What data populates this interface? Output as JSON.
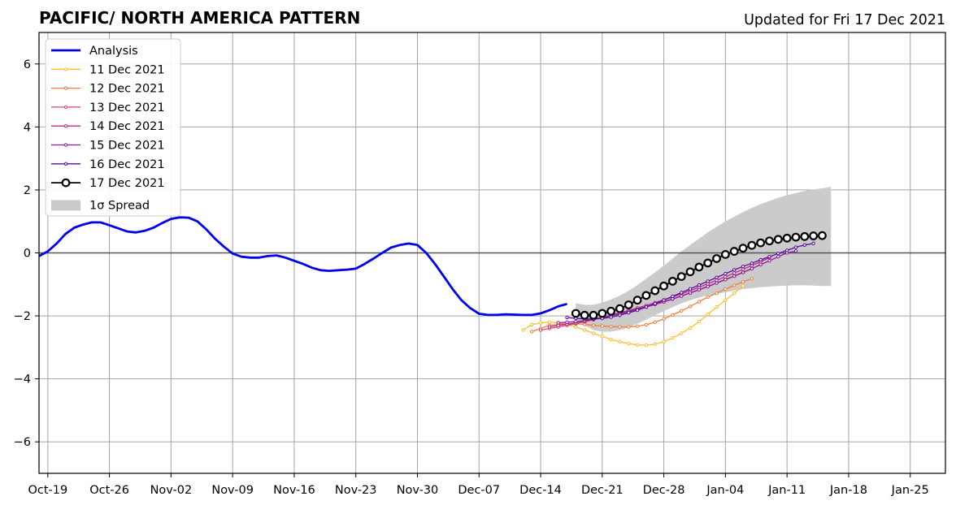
{
  "chart_data": {
    "type": "line",
    "title": "PACIFIC/ NORTH AMERICA PATTERN",
    "subtitle": "Updated for Fri 17 Dec 2021",
    "xlabel": "",
    "ylabel": "",
    "x_axis": {
      "type": "date",
      "range": [
        "2021-10-18",
        "2022-01-29"
      ],
      "ticks": [
        {
          "date": "2021-10-19",
          "label": "Oct-19"
        },
        {
          "date": "2021-10-26",
          "label": "Oct-26"
        },
        {
          "date": "2021-11-02",
          "label": "Nov-02"
        },
        {
          "date": "2021-11-09",
          "label": "Nov-09"
        },
        {
          "date": "2021-11-16",
          "label": "Nov-16"
        },
        {
          "date": "2021-11-23",
          "label": "Nov-23"
        },
        {
          "date": "2021-11-30",
          "label": "Nov-30"
        },
        {
          "date": "2021-12-07",
          "label": "Dec-07"
        },
        {
          "date": "2021-12-14",
          "label": "Dec-14"
        },
        {
          "date": "2021-12-21",
          "label": "Dec-21"
        },
        {
          "date": "2021-12-28",
          "label": "Dec-28"
        },
        {
          "date": "2022-01-04",
          "label": "Jan-04"
        },
        {
          "date": "2022-01-11",
          "label": "Jan-11"
        },
        {
          "date": "2022-01-18",
          "label": "Jan-18"
        },
        {
          "date": "2022-01-25",
          "label": "Jan-25"
        }
      ]
    },
    "y_axis": {
      "range": [
        -7,
        7
      ],
      "ticks": [
        {
          "value": -6,
          "label": "−6"
        },
        {
          "value": -4,
          "label": "−4"
        },
        {
          "value": -2,
          "label": "−2"
        },
        {
          "value": 0,
          "label": "0"
        },
        {
          "value": 2,
          "label": "2"
        },
        {
          "value": 4,
          "label": "4"
        },
        {
          "value": 6,
          "label": "6"
        }
      ]
    },
    "grid": true,
    "zero_line": true,
    "legend_position": "upper-left",
    "analysis": {
      "name": "Analysis",
      "color": "#0000ee",
      "start_date": "2021-10-18",
      "values": [
        -0.1,
        0.05,
        0.3,
        0.6,
        0.8,
        0.9,
        0.97,
        0.97,
        0.88,
        0.78,
        0.68,
        0.65,
        0.7,
        0.8,
        0.95,
        1.08,
        1.13,
        1.12,
        1.0,
        0.75,
        0.45,
        0.2,
        -0.02,
        -0.12,
        -0.15,
        -0.15,
        -0.1,
        -0.08,
        -0.15,
        -0.25,
        -0.35,
        -0.47,
        -0.55,
        -0.57,
        -0.55,
        -0.53,
        -0.5,
        -0.35,
        -0.18,
        0.0,
        0.17,
        0.25,
        0.3,
        0.25,
        0.0,
        -0.35,
        -0.75,
        -1.15,
        -1.5,
        -1.75,
        -1.93,
        -1.97,
        -1.97,
        -1.95,
        -1.96,
        -1.97,
        -1.97,
        -1.92,
        -1.82,
        -1.7,
        -1.62
      ]
    },
    "forecasts": [
      {
        "name": "11 Dec 2021",
        "color": "#fcbf30",
        "start_date": "2021-12-12",
        "values": [
          -2.45,
          -2.28,
          -2.22,
          -2.2,
          -2.22,
          -2.27,
          -2.35,
          -2.45,
          -2.55,
          -2.65,
          -2.75,
          -2.82,
          -2.88,
          -2.92,
          -2.93,
          -2.9,
          -2.82,
          -2.7,
          -2.55,
          -2.38,
          -2.18,
          -1.95,
          -1.72,
          -1.5,
          -1.28,
          -1.05
        ]
      },
      {
        "name": "12 Dec 2021",
        "color": "#f37d3c",
        "start_date": "2021-12-13",
        "values": [
          -2.5,
          -2.4,
          -2.3,
          -2.27,
          -2.25,
          -2.25,
          -2.27,
          -2.3,
          -2.32,
          -2.34,
          -2.35,
          -2.35,
          -2.33,
          -2.28,
          -2.2,
          -2.1,
          -1.97,
          -1.84,
          -1.7,
          -1.55,
          -1.4,
          -1.28,
          -1.15,
          -1.03,
          -0.92,
          -0.82
        ]
      },
      {
        "name": "13 Dec 2021",
        "color": "#db4a64",
        "start_date": "2021-12-14",
        "values": [
          -2.45,
          -2.4,
          -2.35,
          -2.3,
          -2.25,
          -2.18,
          -2.12,
          -2.06,
          -2.0,
          -1.94,
          -1.88,
          -1.8,
          -1.72,
          -1.64,
          -1.56,
          -1.47,
          -1.37,
          -1.27,
          -1.17,
          -1.06,
          -0.95,
          -0.84,
          -0.73,
          -0.62,
          -0.5
        ]
      },
      {
        "name": "14 Dec 2021",
        "color": "#b42e83",
        "start_date": "2021-12-15",
        "values": [
          -2.35,
          -2.3,
          -2.26,
          -2.22,
          -2.18,
          -2.12,
          -2.05,
          -1.98,
          -1.9,
          -1.83,
          -1.75,
          -1.67,
          -1.58,
          -1.49,
          -1.4,
          -1.3,
          -1.2,
          -1.09,
          -0.98,
          -0.87,
          -0.76,
          -0.64,
          -0.52,
          -0.4,
          -0.28,
          -0.15
        ]
      },
      {
        "name": "15 Dec 2021",
        "color": "#8d1a9d",
        "start_date": "2021-12-16",
        "values": [
          -2.22,
          -2.2,
          -2.18,
          -2.15,
          -2.1,
          -2.05,
          -1.99,
          -1.93,
          -1.86,
          -1.79,
          -1.71,
          -1.63,
          -1.55,
          -1.46,
          -1.37,
          -1.27,
          -1.17,
          -1.07,
          -0.96,
          -0.85,
          -0.74,
          -0.62,
          -0.5,
          -0.37,
          -0.25,
          -0.12,
          0.0,
          0.06
        ]
      },
      {
        "name": "16 Dec 2021",
        "color": "#5a0aa4",
        "start_date": "2021-12-17",
        "values": [
          -2.05,
          -2.08,
          -2.1,
          -2.1,
          -2.08,
          -2.04,
          -1.98,
          -1.9,
          -1.82,
          -1.72,
          -1.61,
          -1.5,
          -1.38,
          -1.26,
          -1.14,
          -1.02,
          -0.9,
          -0.78,
          -0.66,
          -0.54,
          -0.43,
          -0.33,
          -0.22,
          -0.12,
          -0.02,
          0.08,
          0.18,
          0.25,
          0.3
        ]
      },
      {
        "name": "17 Dec 2021",
        "color": "#000000",
        "start_date": "2021-12-18",
        "values": [
          -1.92,
          -1.98,
          -1.98,
          -1.92,
          -1.85,
          -1.77,
          -1.65,
          -1.5,
          -1.35,
          -1.2,
          -1.05,
          -0.9,
          -0.75,
          -0.6,
          -0.45,
          -0.32,
          -0.18,
          -0.05,
          0.05,
          0.15,
          0.24,
          0.32,
          0.38,
          0.43,
          0.47,
          0.5,
          0.52,
          0.54,
          0.55
        ]
      }
    ],
    "spread": {
      "name": "1σ Spread",
      "color": "#cbcbcb",
      "start_date": "2021-12-18",
      "upper": [
        -1.6,
        -1.65,
        -1.65,
        -1.58,
        -1.48,
        -1.36,
        -1.2,
        -1.02,
        -0.82,
        -0.62,
        -0.4,
        -0.18,
        0.05,
        0.25,
        0.45,
        0.65,
        0.83,
        1.0,
        1.15,
        1.3,
        1.43,
        1.55,
        1.65,
        1.75,
        1.83,
        1.9,
        1.97,
        2.02,
        2.05,
        2.1
      ],
      "lower": [
        -2.1,
        -2.3,
        -2.45,
        -2.5,
        -2.5,
        -2.45,
        -2.37,
        -2.25,
        -2.12,
        -1.98,
        -1.85,
        -1.72,
        -1.6,
        -1.5,
        -1.42,
        -1.35,
        -1.3,
        -1.25,
        -1.2,
        -1.15,
        -1.12,
        -1.09,
        -1.07,
        -1.05,
        -1.04,
        -1.03,
        -1.03,
        -1.04,
        -1.05,
        -1.05
      ]
    }
  }
}
